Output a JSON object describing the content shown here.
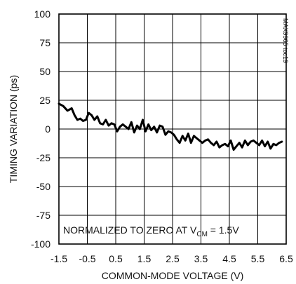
{
  "chart_data": {
    "type": "line",
    "xlabel": "COMMON-MODE VOLTAGE (V)",
    "ylabel": "TIMING VARIATION (ps)",
    "xlim": [
      -1.5,
      6.5
    ],
    "ylim": [
      -100,
      100
    ],
    "xticks": [
      -1.5,
      -0.5,
      0.5,
      1.5,
      2.5,
      3.5,
      4.5,
      5.5,
      6.5
    ],
    "xtick_labels": [
      "-1.5",
      "-0.5",
      "0.5",
      "1.5",
      "2.5",
      "3.5",
      "4.5",
      "5.5",
      "6.5"
    ],
    "yticks": [
      100,
      75,
      50,
      25,
      0,
      -25,
      -50,
      -75,
      -100
    ],
    "ytick_labels": [
      "100",
      "75",
      "50",
      "25",
      "0",
      "-25",
      "-50",
      "-75",
      "-100"
    ],
    "grid": true,
    "annotation": {
      "main": "NORMALIZED TO ZERO AT V",
      "sub": "CM",
      "tail": " = 1.5V"
    },
    "identifier": "MAX9965 toc19",
    "series": [
      {
        "x": [
          -1.5,
          -1.35,
          -1.2,
          -1.05,
          -0.95,
          -0.85,
          -0.75,
          -0.65,
          -0.55,
          -0.45,
          -0.35,
          -0.25,
          -0.15,
          -0.05,
          0.05,
          0.15,
          0.25,
          0.35,
          0.45,
          0.55,
          0.65,
          0.75,
          0.85,
          0.95,
          1.05,
          1.15,
          1.25,
          1.35,
          1.45,
          1.55,
          1.65,
          1.75,
          1.85,
          1.95,
          2.05,
          2.15,
          2.25,
          2.35,
          2.45,
          2.55,
          2.65,
          2.75,
          2.85,
          2.95,
          3.05,
          3.15,
          3.25,
          3.35,
          3.45,
          3.55,
          3.65,
          3.75,
          3.85,
          3.95,
          4.05,
          4.15,
          4.25,
          4.35,
          4.45,
          4.55,
          4.65,
          4.75,
          4.85,
          4.95,
          5.05,
          5.15,
          5.25,
          5.35,
          5.45,
          5.55,
          5.65,
          5.75,
          5.85,
          5.95,
          6.05,
          6.15,
          6.25,
          6.35
        ],
        "values": [
          22,
          20,
          16,
          18,
          12,
          8,
          9,
          7,
          8,
          14,
          12,
          8,
          11,
          5,
          4,
          8,
          3,
          5,
          4,
          -2,
          2,
          4,
          2,
          0,
          6,
          -3,
          3,
          0,
          8,
          -2,
          4,
          -1,
          2,
          -3,
          3,
          2,
          -5,
          -2,
          -3,
          -5,
          -9,
          -12,
          -6,
          -10,
          -4,
          -12,
          -6,
          -8,
          -10,
          -12,
          -10,
          -9,
          -12,
          -14,
          -11,
          -16,
          -14,
          -13,
          -15,
          -10,
          -18,
          -15,
          -12,
          -16,
          -10,
          -14,
          -11,
          -10,
          -12,
          -14,
          -10,
          -15,
          -11,
          -17,
          -13,
          -14,
          -12,
          -11
        ]
      }
    ]
  }
}
